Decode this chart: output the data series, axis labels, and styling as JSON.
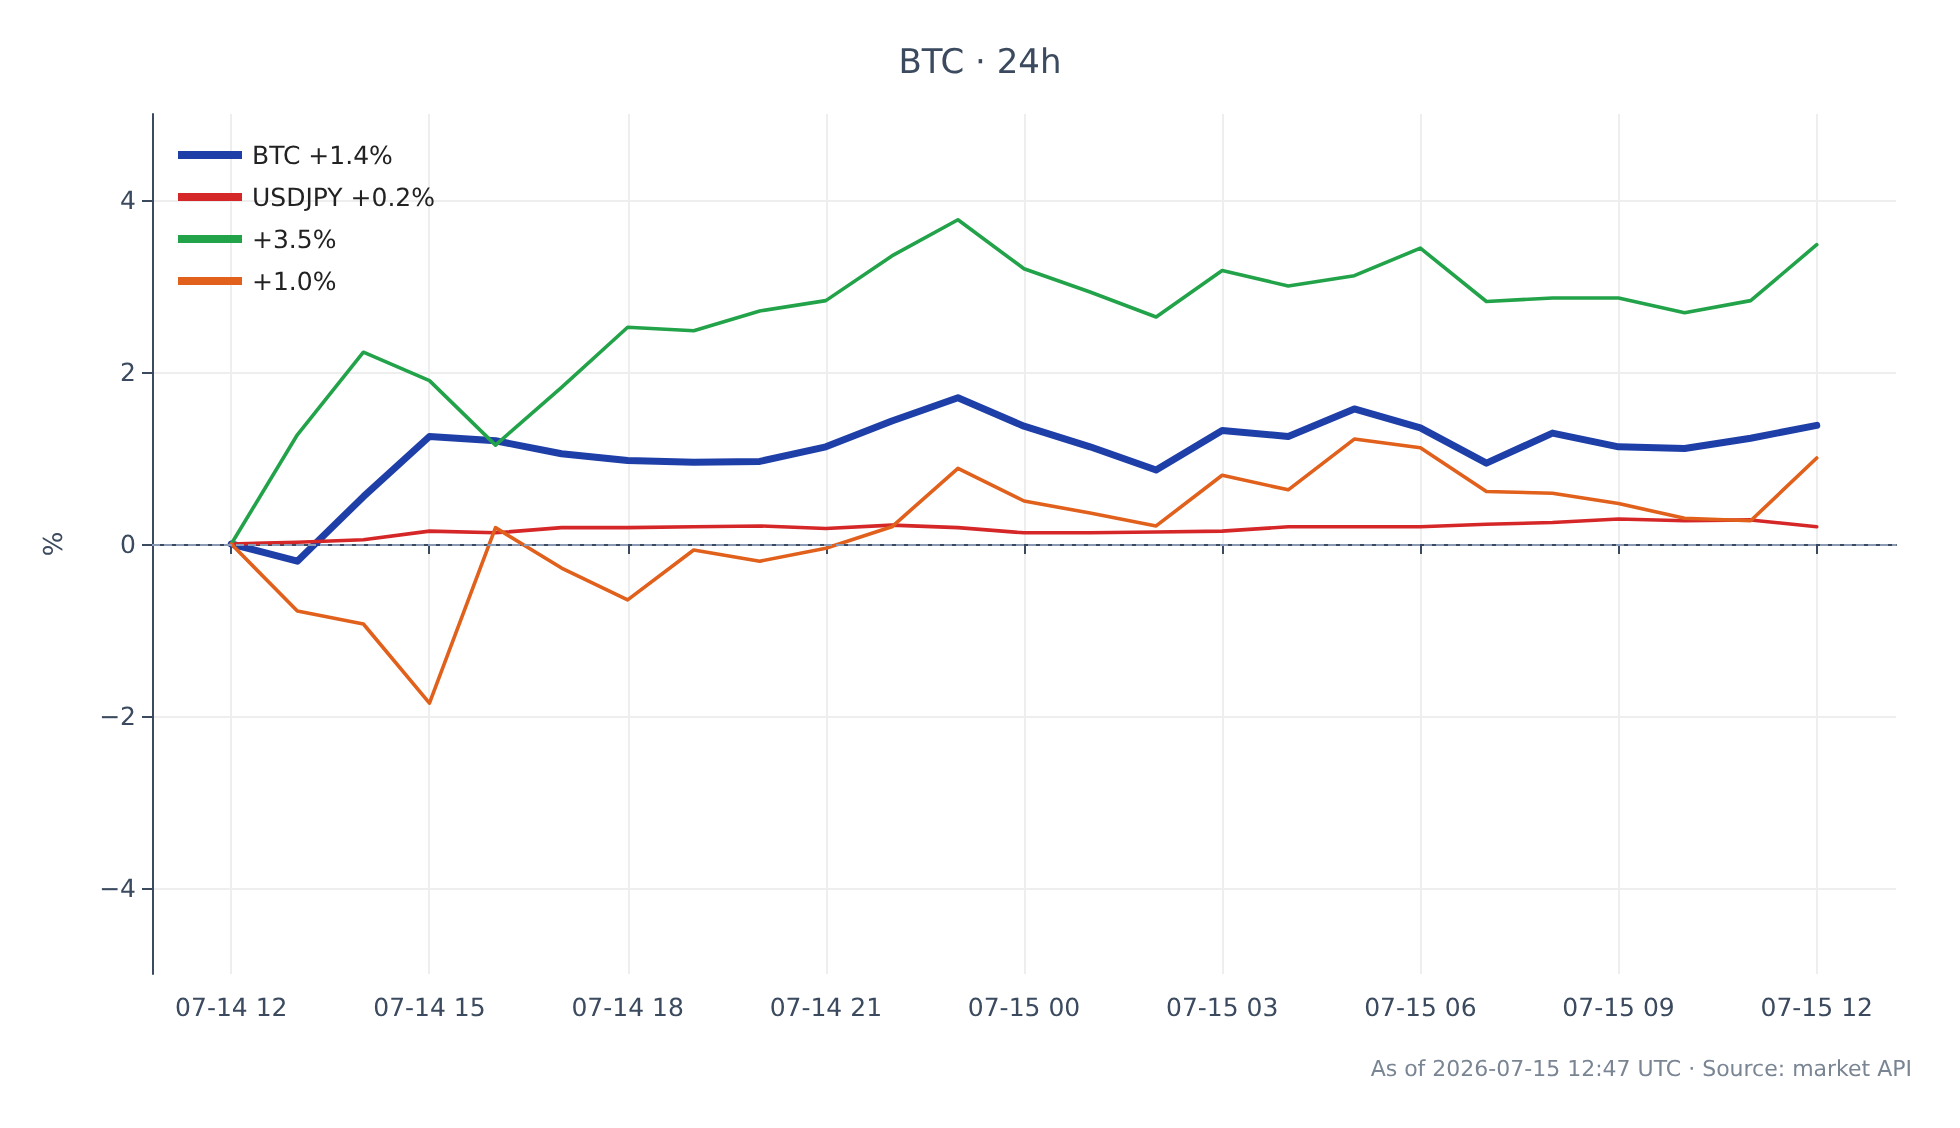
{
  "chart_data": {
    "type": "line",
    "title": "BTC · 24h",
    "ylabel": "%",
    "x": [
      "2026-07-14T12:00",
      "2026-07-14T13:00",
      "2026-07-14T14:00",
      "2026-07-14T15:00",
      "2026-07-14T16:00",
      "2026-07-14T17:00",
      "2026-07-14T18:00",
      "2026-07-14T19:00",
      "2026-07-14T20:00",
      "2026-07-14T21:00",
      "2026-07-14T22:00",
      "2026-07-14T23:00",
      "2026-07-15T00:00",
      "2026-07-15T01:00",
      "2026-07-15T02:00",
      "2026-07-15T03:00",
      "2026-07-15T04:00",
      "2026-07-15T05:00",
      "2026-07-15T06:00",
      "2026-07-15T07:00",
      "2026-07-15T08:00",
      "2026-07-15T09:00",
      "2026-07-15T10:00",
      "2026-07-15T11:00",
      "2026-07-15T12:00"
    ],
    "series": [
      {
        "name": "BTC +1.4%",
        "color": "#1f3fa8",
        "values": [
          0,
          -0.2,
          0.55,
          1.25,
          1.2,
          1.05,
          0.97,
          0.95,
          0.96,
          1.13,
          1.43,
          1.7,
          1.37,
          1.13,
          0.86,
          1.32,
          1.25,
          1.57,
          1.35,
          0.94,
          1.29,
          1.13,
          1.11,
          1.23,
          1.38
        ]
      },
      {
        "name": "USDJPY +0.2%",
        "color": "#d62728",
        "values": [
          0,
          0.02,
          0.05,
          0.15,
          0.13,
          0.19,
          0.19,
          0.2,
          0.21,
          0.18,
          0.22,
          0.19,
          0.13,
          0.13,
          0.14,
          0.15,
          0.2,
          0.2,
          0.2,
          0.23,
          0.25,
          0.29,
          0.27,
          0.28,
          0.2
        ]
      },
      {
        "name": "+3.5%",
        "color": "#22a34a",
        "values": [
          0,
          1.27,
          2.23,
          1.9,
          1.15,
          1.82,
          2.52,
          2.48,
          2.71,
          2.83,
          3.35,
          3.77,
          3.2,
          2.93,
          2.64,
          3.18,
          3.0,
          3.12,
          3.44,
          2.82,
          2.86,
          2.86,
          2.69,
          2.83,
          3.48
        ]
      },
      {
        "name": "+1.0%",
        "color": "#e0601c",
        "values": [
          0,
          -0.78,
          -0.93,
          -1.85,
          0.19,
          -0.28,
          -0.65,
          -0.07,
          -0.2,
          -0.05,
          0.2,
          0.88,
          0.5,
          0.36,
          0.21,
          0.8,
          0.63,
          1.22,
          1.12,
          0.61,
          0.59,
          0.47,
          0.3,
          0.27,
          1.0
        ]
      }
    ],
    "xlim": [
      "2026-07-14T10:48",
      "2026-07-15T13:12"
    ],
    "xticks": [
      {
        "value": "2026-07-14T12:00",
        "label": "07-14 12"
      },
      {
        "value": "2026-07-14T15:00",
        "label": "07-14 15"
      },
      {
        "value": "2026-07-14T18:00",
        "label": "07-14 18"
      },
      {
        "value": "2026-07-14T21:00",
        "label": "07-14 21"
      },
      {
        "value": "2026-07-15T00:00",
        "label": "07-15 00"
      },
      {
        "value": "2026-07-15T03:00",
        "label": "07-15 03"
      },
      {
        "value": "2026-07-15T06:00",
        "label": "07-15 06"
      },
      {
        "value": "2026-07-15T09:00",
        "label": "07-15 09"
      },
      {
        "value": "2026-07-15T12:00",
        "label": "07-15 12"
      }
    ],
    "ylim": [
      -5,
      5
    ],
    "yticks": [
      {
        "value": -4,
        "label": "−4"
      },
      {
        "value": -2,
        "label": "−2"
      },
      0,
      2,
      4
    ],
    "ref_lines": [
      {
        "axis": "y",
        "value": 0,
        "color": "#8c9bb5",
        "line_style": "dashed"
      }
    ],
    "annotations": [
      "As of 2026-07-15 12:47 UTC · Source: market API"
    ],
    "grid": true,
    "legend": "top left",
    "marker": "none",
    "line_style": "solid"
  }
}
